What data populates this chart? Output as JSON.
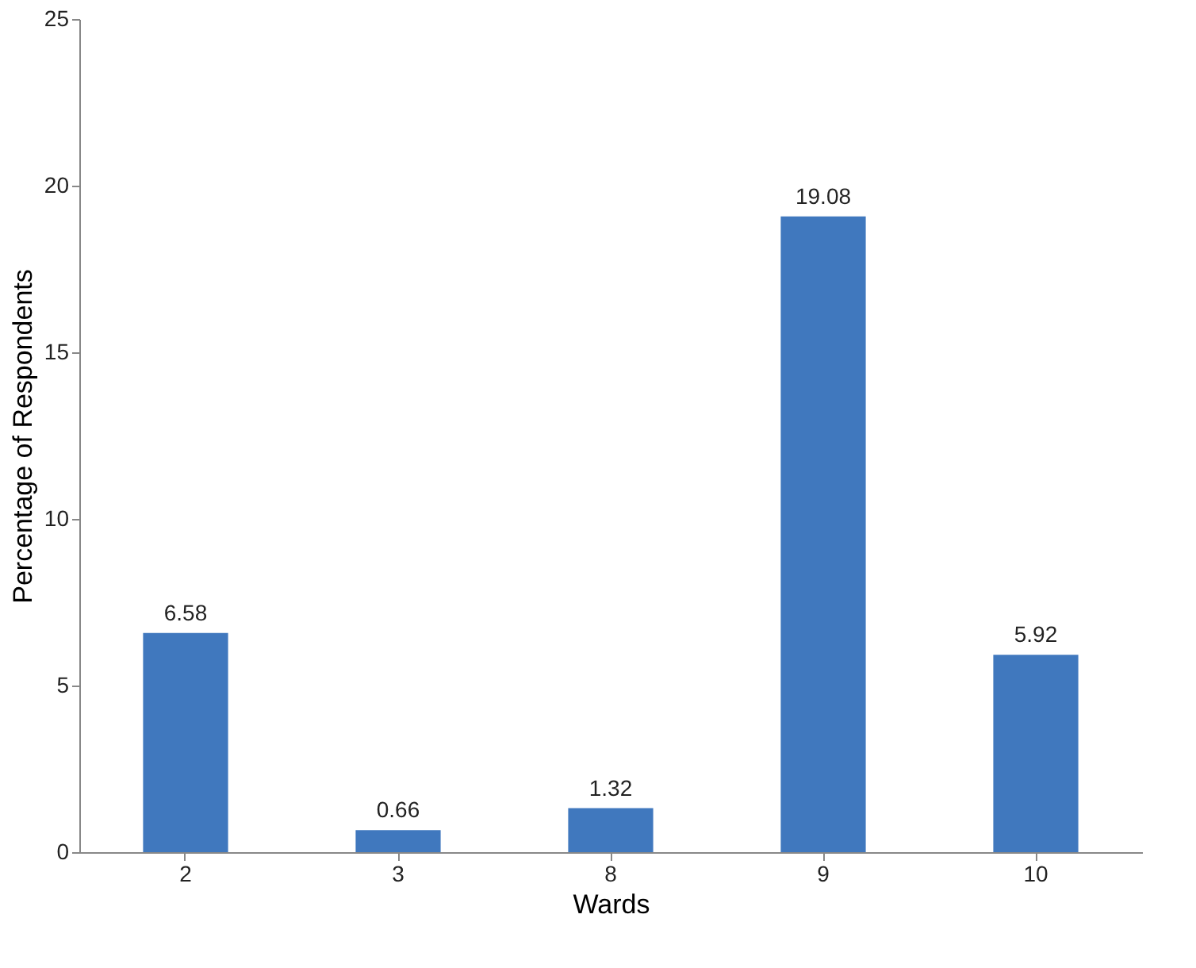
{
  "chart_data": {
    "type": "bar",
    "xlabel": "Wards",
    "ylabel": "Percentage of Respondents",
    "categories": [
      "2",
      "3",
      "8",
      "9",
      "10"
    ],
    "values": [
      6.58,
      0.66,
      1.32,
      19.08,
      5.92
    ],
    "color": "#4078be",
    "ylim": [
      0,
      25
    ],
    "yticks": [
      0,
      5,
      10,
      15,
      20,
      25
    ],
    "data_labels": true,
    "grid": false
  }
}
